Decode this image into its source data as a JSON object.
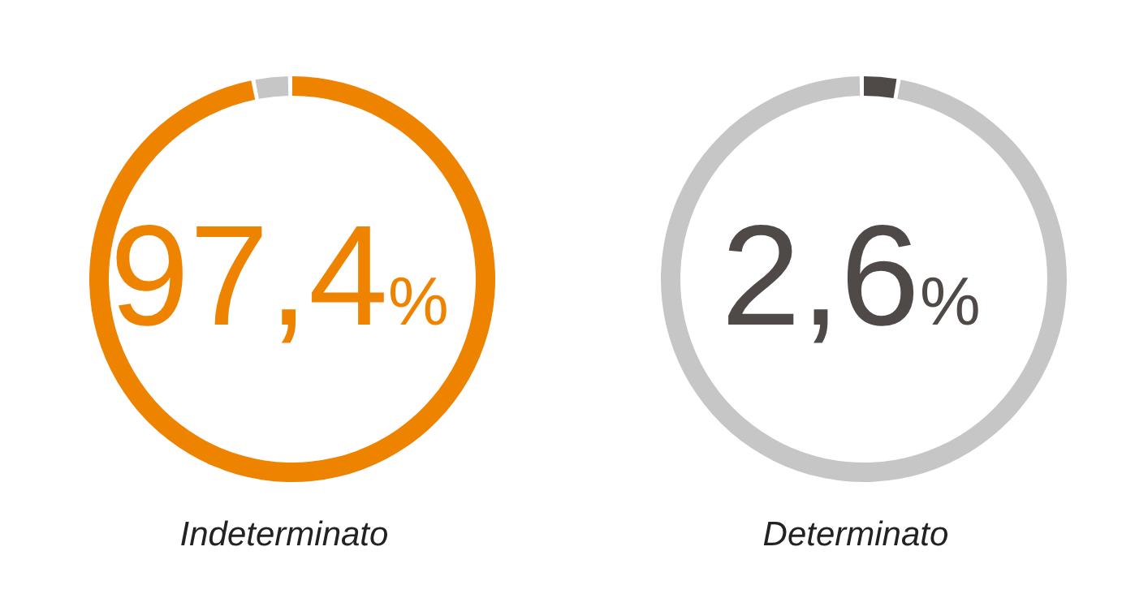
{
  "chart_data": [
    {
      "type": "donut",
      "title": "Indeterminato",
      "annotations": [
        "97,4%"
      ],
      "categories": [
        null,
        null
      ],
      "values": [
        97.4,
        2.6
      ],
      "colors": [
        "#ee8300",
        "#c6c6c6"
      ]
    },
    {
      "type": "donut",
      "title": "Determinato",
      "annotations": [
        "2,6%"
      ],
      "categories": [
        null,
        null
      ],
      "values": [
        2.6,
        97.4
      ],
      "colors": [
        "#4f4a48",
        "#c6c6c6"
      ]
    }
  ]
}
